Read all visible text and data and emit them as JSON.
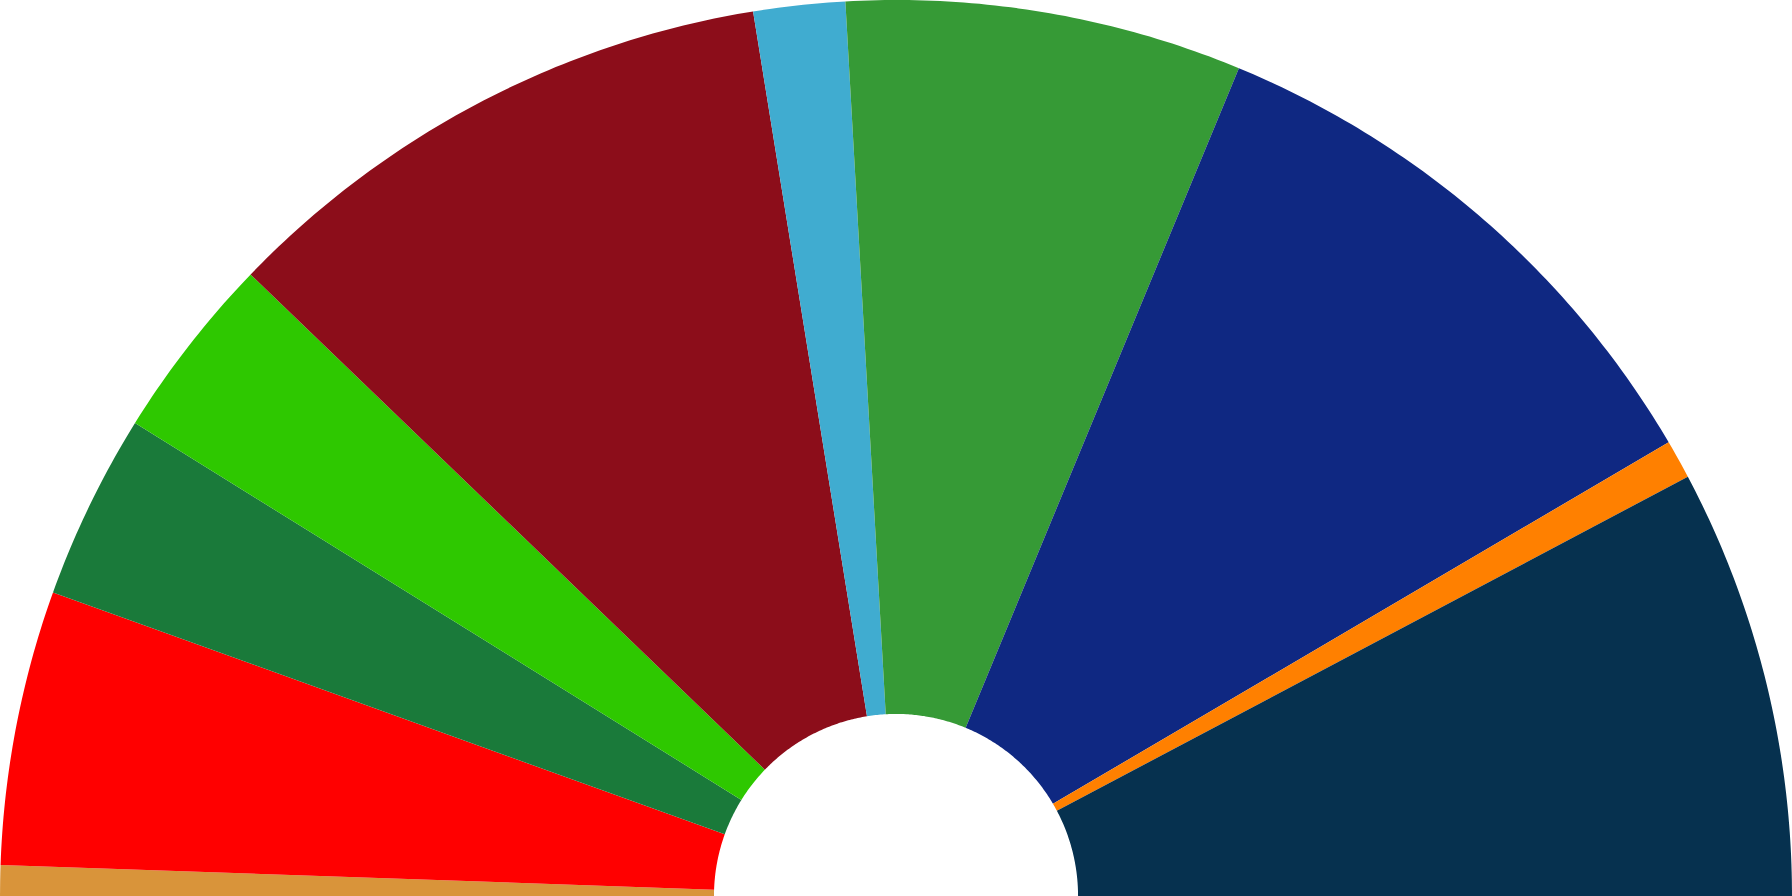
{
  "chart_data": {
    "type": "donut",
    "categories": [
      null,
      null,
      null,
      null,
      null,
      null,
      null,
      null,
      null,
      null
    ],
    "values": [
      1.1,
      9.9,
      6.7,
      6.7,
      20.5,
      3.3,
      14.3,
      20.6,
      1.4,
      15.5
    ],
    "colors": [
      "#d9943a",
      "#ff0000",
      "#1a7a3a",
      "#2ec800",
      "#8c0d1a",
      "#40acd0",
      "#369a36",
      "#0f2882",
      "#ff8000",
      "#06314f"
    ]
  }
}
